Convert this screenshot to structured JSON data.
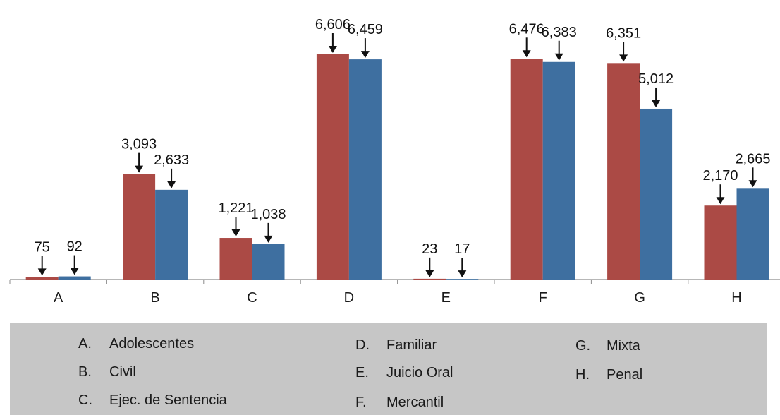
{
  "chart_data": {
    "type": "bar",
    "categories": [
      "A",
      "B",
      "C",
      "D",
      "E",
      "F",
      "G",
      "H"
    ],
    "series": [
      {
        "values": [
          75,
          3093,
          1221,
          6606,
          23,
          6476,
          6351,
          2170
        ]
      },
      {
        "values": [
          92,
          2633,
          1038,
          6459,
          17,
          6383,
          5012,
          2665
        ]
      }
    ],
    "data_labels": [
      [
        "75",
        "3,093",
        "1,221",
        "6,606",
        "23",
        "6,476",
        "6,351",
        "2,170"
      ],
      [
        "92",
        "2,633",
        "1,038",
        "6,459",
        "17",
        "6,383",
        "5,012",
        "2,665"
      ]
    ],
    "ylim": [
      0,
      6606
    ],
    "grid": false,
    "colors": [
      "#ab4a45",
      "#3e6fa0"
    ]
  },
  "legend": {
    "items": [
      {
        "letter": "A.",
        "name": "Adolescentes"
      },
      {
        "letter": "B.",
        "name": "Civil"
      },
      {
        "letter": "C.",
        "name": "Ejec. de Sentencia"
      },
      {
        "letter": "D.",
        "name": "Familiar"
      },
      {
        "letter": "E.",
        "name": "Juicio Oral"
      },
      {
        "letter": "F.",
        "name": "Mercantil"
      },
      {
        "letter": "G.",
        "name": "Mixta"
      },
      {
        "letter": "H.",
        "name": "Penal"
      }
    ]
  }
}
